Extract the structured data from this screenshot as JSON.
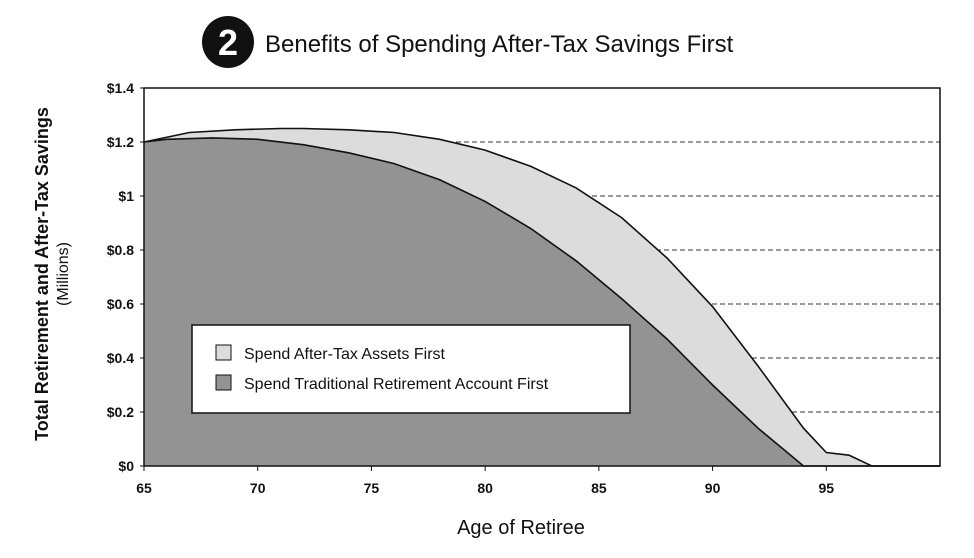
{
  "header": {
    "badge_number": "2",
    "title": "Benefits of Spending After-Tax Savings First"
  },
  "chart_data": {
    "type": "area",
    "title": "Benefits of Spending After-Tax Savings First",
    "xlabel": "Age of Retiree",
    "ylabel_line1": "Total Retirement and After-Tax Savings",
    "ylabel_line2": "(Millions)",
    "xlim": [
      65,
      100
    ],
    "ylim": [
      0,
      1.4
    ],
    "x_ticks": [
      65,
      70,
      75,
      80,
      85,
      90,
      95
    ],
    "x_tick_labels": [
      "65",
      "70",
      "75",
      "80",
      "85",
      "90",
      "95"
    ],
    "y_ticks": [
      0,
      0.2,
      0.4,
      0.6,
      0.8,
      1.0,
      1.2,
      1.4
    ],
    "y_tick_labels": [
      "$0",
      "$0.2",
      "$0.4",
      "$0.6",
      "$0.8",
      "$1",
      "$1.2",
      "$1.4"
    ],
    "grid": "horizontal dashed",
    "legend_position": "lower-left inside plot",
    "series": [
      {
        "name": "Spend After-Tax Assets First",
        "color": "#dcdcdc",
        "x": [
          65,
          67,
          69,
          71,
          72,
          74,
          76,
          78,
          80,
          82,
          84,
          86,
          88,
          90,
          92,
          94,
          95,
          96,
          97,
          98,
          100
        ],
        "values": [
          1.2,
          1.235,
          1.245,
          1.25,
          1.25,
          1.245,
          1.235,
          1.21,
          1.17,
          1.11,
          1.03,
          0.92,
          0.77,
          0.59,
          0.37,
          0.14,
          0.05,
          0.04,
          0.0,
          0.0,
          0.0
        ]
      },
      {
        "name": "Spend Traditional Retirement Account First",
        "color": "#939393",
        "x": [
          65,
          66,
          68,
          70,
          72,
          74,
          76,
          78,
          80,
          82,
          84,
          86,
          88,
          90,
          92,
          94,
          96,
          98,
          100
        ],
        "values": [
          1.2,
          1.21,
          1.215,
          1.21,
          1.19,
          1.16,
          1.12,
          1.06,
          0.98,
          0.88,
          0.76,
          0.62,
          0.47,
          0.3,
          0.14,
          0.0,
          0.0,
          0.0,
          0.0
        ]
      }
    ]
  }
}
